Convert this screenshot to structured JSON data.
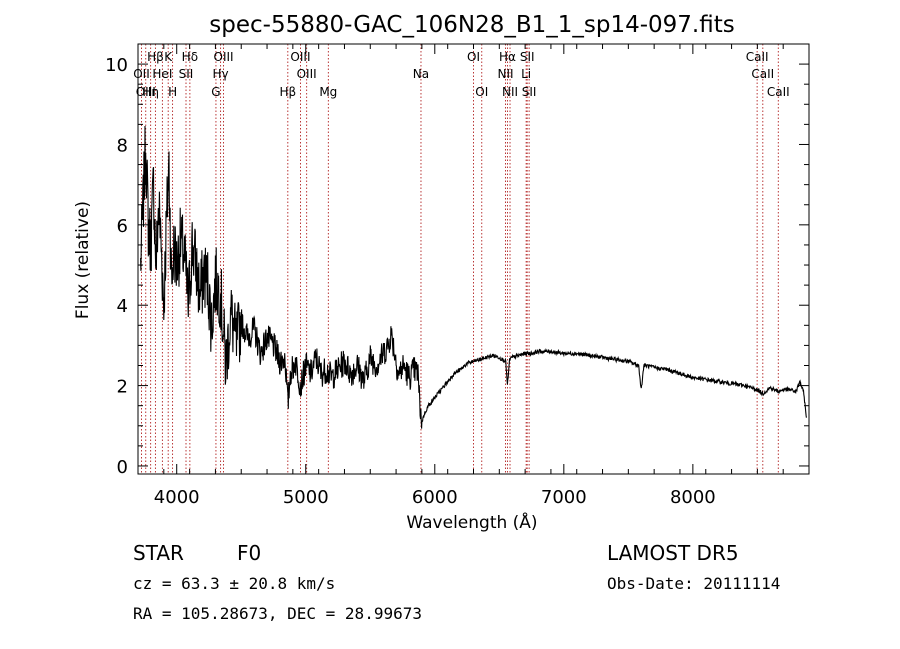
{
  "chart_data": {
    "type": "line",
    "title": "spec-55880-GAC_106N28_B1_1_sp14-097.fits",
    "xlabel": "Wavelength (Å)",
    "ylabel": "Flux (relative)",
    "xlim": [
      3700,
      8900
    ],
    "ylim": [
      -0.2,
      10.5
    ],
    "x_ticks": [
      4000,
      5000,
      6000,
      7000,
      8000
    ],
    "y_ticks": [
      0,
      2,
      4,
      6,
      8,
      10
    ],
    "grid": false,
    "line_color": "#000000",
    "marker_color": "#b22222",
    "series": [
      {
        "x": [
          3720,
          3740,
          3760,
          3780,
          3800,
          3820,
          3840,
          3860,
          3880,
          3900,
          3920,
          3940,
          3960,
          3980,
          4000,
          4030,
          4060,
          4090,
          4120,
          4150,
          4180,
          4210,
          4240,
          4270,
          4300,
          4340,
          4380,
          4420,
          4460,
          4500,
          4550,
          4600,
          4650,
          4700,
          4750,
          4800,
          4840,
          4862,
          4880,
          4920,
          4960,
          5000,
          5040,
          5080,
          5120,
          5160,
          5200,
          5250,
          5300,
          5350,
          5400,
          5450,
          5500,
          5550,
          5600,
          5640,
          5660,
          5680,
          5700,
          5720,
          5760,
          5800,
          5840,
          5870,
          5880,
          5895,
          5900,
          5920,
          5950,
          6000,
          6050,
          6100,
          6150,
          6200,
          6250,
          6300,
          6350,
          6400,
          6450,
          6500,
          6550,
          6563,
          6580,
          6600,
          6650,
          6700,
          6750,
          6800,
          6850,
          6900,
          7000,
          7100,
          7200,
          7300,
          7400,
          7500,
          7580,
          7600,
          7620,
          7640,
          7700,
          7800,
          7900,
          8000,
          8100,
          8200,
          8300,
          8400,
          8498,
          8542,
          8600,
          8662,
          8700,
          8750,
          8800,
          8830,
          8860,
          8880
        ],
        "values": [
          5.0,
          6.5,
          8.0,
          6.0,
          5.5,
          7.0,
          5.0,
          6.5,
          5.5,
          4.0,
          6.0,
          7.5,
          4.5,
          5.5,
          5.0,
          5.6,
          5.2,
          4.0,
          5.5,
          5.0,
          4.2,
          4.8,
          4.6,
          3.5,
          4.6,
          4.3,
          2.5,
          3.8,
          3.0,
          3.6,
          3.2,
          3.4,
          2.8,
          3.2,
          3.0,
          2.6,
          2.7,
          1.5,
          2.3,
          2.6,
          2.0,
          2.5,
          2.3,
          2.7,
          2.3,
          2.4,
          2.2,
          2.4,
          2.6,
          2.3,
          2.5,
          2.1,
          2.7,
          2.5,
          2.8,
          3.0,
          3.3,
          3.0,
          2.6,
          2.3,
          2.5,
          2.2,
          2.4,
          2.3,
          1.7,
          1.2,
          1.1,
          1.3,
          1.5,
          1.7,
          1.9,
          2.1,
          2.3,
          2.4,
          2.55,
          2.6,
          2.65,
          2.7,
          2.75,
          2.7,
          2.6,
          2.0,
          2.65,
          2.7,
          2.75,
          2.8,
          2.8,
          2.85,
          2.85,
          2.85,
          2.8,
          2.8,
          2.75,
          2.7,
          2.65,
          2.6,
          2.5,
          1.9,
          2.5,
          2.5,
          2.45,
          2.4,
          2.3,
          2.2,
          2.15,
          2.1,
          2.05,
          2.0,
          1.9,
          1.8,
          1.95,
          1.85,
          1.9,
          1.9,
          1.85,
          2.1,
          1.8,
          1.2
        ]
      }
    ],
    "line_markers": [
      {
        "label": "Hβ",
        "wl": 3835,
        "row": 0
      },
      {
        "label": "K",
        "wl": 3934,
        "row": 0
      },
      {
        "label": "Hδ",
        "wl": 4102,
        "row": 0
      },
      {
        "label": "OIII",
        "wl": 4363,
        "row": 0
      },
      {
        "label": "OIII",
        "wl": 4959,
        "row": 0
      },
      {
        "label": "OI",
        "wl": 6300,
        "row": 0
      },
      {
        "label": "Hα",
        "wl": 6563,
        "row": 0
      },
      {
        "label": "SII",
        "wl": 6716,
        "row": 0
      },
      {
        "label": "CaII",
        "wl": 8498,
        "row": 0
      },
      {
        "label": "OII",
        "wl": 3727,
        "row": 1
      },
      {
        "label": "HeI",
        "wl": 3889,
        "row": 1
      },
      {
        "label": "SII",
        "wl": 4072,
        "row": 1
      },
      {
        "label": "Hγ",
        "wl": 4340,
        "row": 1
      },
      {
        "label": "OIII",
        "wl": 5007,
        "row": 1
      },
      {
        "label": "Na",
        "wl": 5893,
        "row": 1
      },
      {
        "label": "NII",
        "wl": 6548,
        "row": 1
      },
      {
        "label": "Li",
        "wl": 6708,
        "row": 1
      },
      {
        "label": "CaII",
        "wl": 8542,
        "row": 1
      },
      {
        "label": "OIII",
        "wl": 3760,
        "row": 2
      },
      {
        "label": "Hη",
        "wl": 3798,
        "row": 2
      },
      {
        "label": "H",
        "wl": 3968,
        "row": 2
      },
      {
        "label": "G",
        "wl": 4304,
        "row": 2
      },
      {
        "label": "Hβ",
        "wl": 4861,
        "row": 2
      },
      {
        "label": "Mg",
        "wl": 5175,
        "row": 2
      },
      {
        "label": "OI",
        "wl": 6364,
        "row": 2
      },
      {
        "label": "NII",
        "wl": 6583,
        "row": 2
      },
      {
        "label": "SII",
        "wl": 6731,
        "row": 2
      },
      {
        "label": "CaII",
        "wl": 8662,
        "row": 2
      }
    ]
  },
  "info": {
    "class_label": "STAR",
    "subclass_label": "F0",
    "survey_label": "LAMOST DR5",
    "cz_text": "cz = 63.3 ± 20.8 km/s",
    "obs_date_text": "Obs-Date: 20111114",
    "radec_text": "RA = 105.28673, DEC =  28.99673"
  }
}
